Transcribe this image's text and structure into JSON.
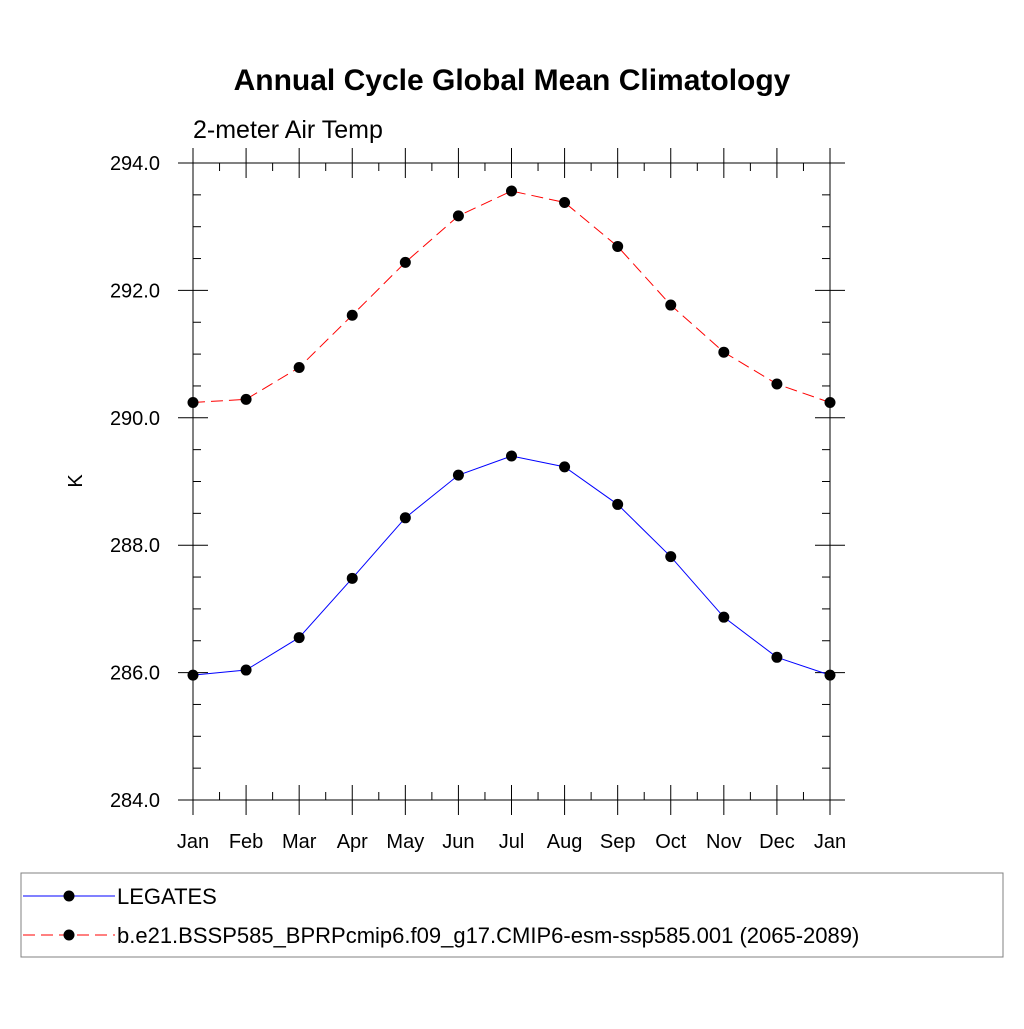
{
  "chart_data": {
    "type": "line",
    "title": "Annual Cycle Global Mean Climatology",
    "subtitle": "2-meter Air Temp",
    "xlabel": "",
    "ylabel": "K",
    "categories": [
      "Jan",
      "Feb",
      "Mar",
      "Apr",
      "May",
      "Jun",
      "Jul",
      "Aug",
      "Sep",
      "Oct",
      "Nov",
      "Dec",
      "Jan"
    ],
    "ylim": [
      284.0,
      294.0
    ],
    "yticks": [
      "284.0",
      "286.0",
      "288.0",
      "290.0",
      "292.0",
      "294.0"
    ],
    "grid": false,
    "legend_position": "bottom",
    "series": [
      {
        "name": "LEGATES",
        "color": "#0000ff",
        "dash": "solid",
        "values": [
          285.96,
          286.04,
          286.55,
          287.48,
          288.43,
          289.1,
          289.4,
          289.23,
          288.64,
          287.82,
          286.87,
          286.24,
          285.96
        ]
      },
      {
        "name": "b.e21.BSSP585_BPRPcmip6.f09_g17.CMIP6-esm-ssp585.001 (2065-2089)",
        "color": "#ff0000",
        "dash": "dashed",
        "values": [
          290.24,
          290.29,
          290.79,
          291.61,
          292.44,
          293.17,
          293.56,
          293.38,
          292.69,
          291.77,
          291.03,
          290.53,
          290.24
        ]
      }
    ]
  }
}
